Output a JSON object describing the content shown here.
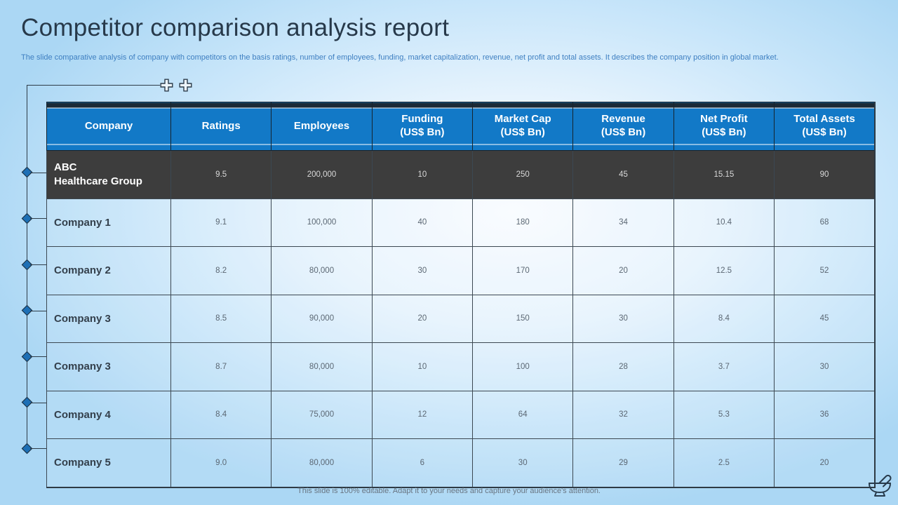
{
  "slide": {
    "title": "Competitor comparison analysis report",
    "subtitle": "The slide comparative analysis of company with competitors on the basis ratings, number of employees, funding, market capitalization, revenue, net profit and total assets. It describes the company position in global market.",
    "footer": "This slide is 100% editable. Adapt it to your needs and capture your audience's attention."
  },
  "table": {
    "columns": [
      {
        "line1": "Company",
        "line2": ""
      },
      {
        "line1": "Ratings",
        "line2": ""
      },
      {
        "line1": "Employees",
        "line2": ""
      },
      {
        "line1": "Funding",
        "line2": "(US$ Bn)"
      },
      {
        "line1": "Market Cap",
        "line2": "(US$ Bn)"
      },
      {
        "line1": "Revenue",
        "line2": "(US$ Bn)"
      },
      {
        "line1": "Net Profit",
        "line2": "(US$ Bn)"
      },
      {
        "line1": "Total Assets",
        "line2": "(US$ Bn)"
      }
    ],
    "rows": [
      {
        "name_lines": [
          "ABC",
          "Healthcare Group"
        ],
        "highlight": true,
        "values": [
          "9.5",
          "200,000",
          "10",
          "250",
          "45",
          "15.15",
          "90"
        ]
      },
      {
        "name_lines": [
          "Company 1"
        ],
        "highlight": false,
        "values": [
          "9.1",
          "100,000",
          "40",
          "180",
          "34",
          "10.4",
          "68"
        ]
      },
      {
        "name_lines": [
          "Company 2"
        ],
        "highlight": false,
        "values": [
          "8.2",
          "80,000",
          "30",
          "170",
          "20",
          "12.5",
          "52"
        ]
      },
      {
        "name_lines": [
          "Company 3"
        ],
        "highlight": false,
        "values": [
          "8.5",
          "90,000",
          "20",
          "150",
          "30",
          "8.4",
          "45"
        ]
      },
      {
        "name_lines": [
          "Company 3"
        ],
        "highlight": false,
        "values": [
          "8.7",
          "80,000",
          "10",
          "100",
          "28",
          "3.7",
          "30"
        ]
      },
      {
        "name_lines": [
          "Company 4"
        ],
        "highlight": false,
        "values": [
          "8.4",
          "75,000",
          "12",
          "64",
          "32",
          "5.3",
          "36"
        ]
      },
      {
        "name_lines": [
          "Company 5"
        ],
        "highlight": false,
        "values": [
          "9.0",
          "80,000",
          "6",
          "30",
          "29",
          "2.5",
          "20"
        ]
      }
    ]
  },
  "icons": {
    "top_decoration": "plus-icon",
    "corner_decoration": "mortar-pestle-icon"
  },
  "colors": {
    "header_blue": "#1279c7",
    "header_navy_strip": "#1b2a36",
    "highlight_row": "#3d3d3d",
    "title_text": "#27394a",
    "subtitle_text": "#3e7fc1",
    "accent_diamond": "#1d6fb5",
    "background_light": "#e6f3fd",
    "background_edge": "#abd7f4"
  }
}
